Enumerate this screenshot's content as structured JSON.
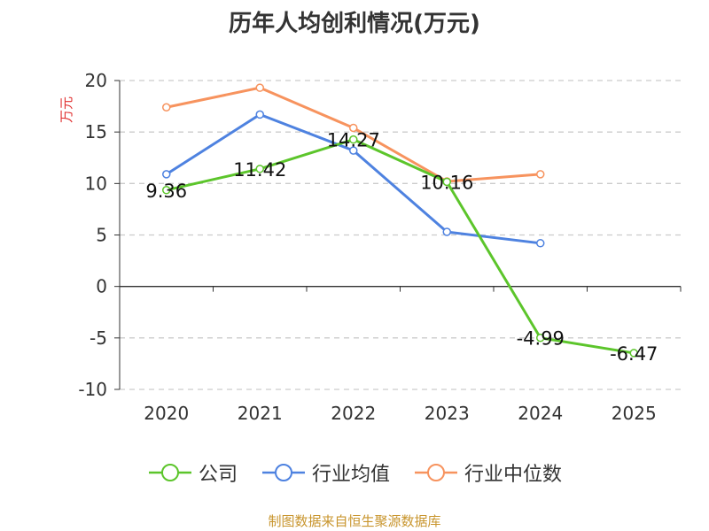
{
  "chart_data": {
    "type": "line",
    "title": "历年人均创利情况(万元)",
    "ylabel": "万元",
    "xlabel": "",
    "categories": [
      "2020",
      "2021",
      "2022",
      "2023",
      "2024",
      "2025"
    ],
    "ylim": [
      -10,
      20
    ],
    "yticks": [
      20,
      15,
      10,
      5,
      0,
      -5,
      -10
    ],
    "grid": true,
    "legend_position": "bottom",
    "series": [
      {
        "name": "公司",
        "color": "#5cc52b",
        "values": [
          9.36,
          11.42,
          14.27,
          10.16,
          -4.99,
          -6.47
        ],
        "show_labels": true
      },
      {
        "name": "行业均值",
        "color": "#4e82e0",
        "values": [
          10.9,
          16.7,
          13.2,
          5.3,
          4.2,
          null
        ],
        "show_labels": false
      },
      {
        "name": "行业中位数",
        "color": "#f7935e",
        "values": [
          17.4,
          19.3,
          15.4,
          10.2,
          10.9,
          null
        ],
        "show_labels": false
      }
    ],
    "data_labels": [
      "9.36",
      "11.42",
      "14.27",
      "10.16",
      "-4.99",
      "-6.47"
    ],
    "ytick_labels": [
      "20",
      "15",
      "10",
      "5",
      "0",
      "-5",
      "-10"
    ]
  },
  "source_text": "制图数据来自恒生聚源数据库",
  "source_color": "#c8952d",
  "ylabel_color": "#e03030"
}
